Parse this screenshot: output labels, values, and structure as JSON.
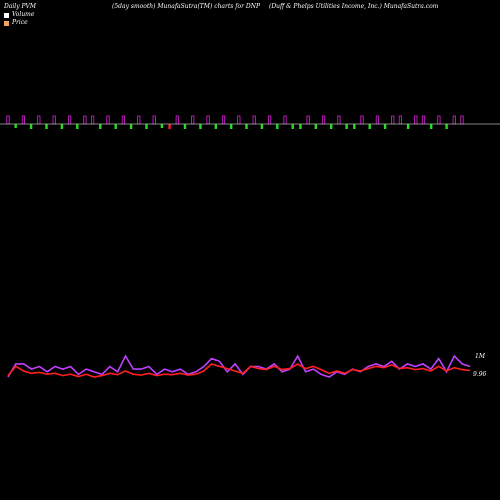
{
  "header": {
    "left": "Daily PVM",
    "center": "(5day smooth) MunafaSutra(TM) charts for DNP",
    "right": "(Duff & Phelps Utilities Income, Inc.) MunafaSutra.com"
  },
  "legend": [
    {
      "label": "Volume",
      "color": "#ffffff"
    },
    {
      "label": "Price",
      "color": "#f4a460"
    }
  ],
  "axis_labels": {
    "volume": "1M",
    "price": "9.96"
  },
  "colors": {
    "up": "#e020e0",
    "down": "#20e020",
    "strong_down": "#ff1a40",
    "baseline": "#b0b0b0",
    "volume_line": "#c040ff",
    "price_line": "#ff2020"
  },
  "chart_data": [
    {
      "type": "bar",
      "panel": "volume-bars",
      "title": "",
      "note_dir": "1 = up day (magenta, above), -1 = down day (below)",
      "values": [
        2,
        -1,
        2,
        2,
        2,
        2,
        2,
        2,
        2,
        2,
        2,
        2,
        2,
        2,
        2,
        2,
        2,
        2,
        2,
        2,
        -1,
        -2,
        2,
        2,
        2,
        2,
        2,
        2,
        2,
        2,
        2,
        2,
        2,
        2,
        2,
        2,
        2,
        2,
        2,
        2,
        2,
        2,
        2,
        2,
        2,
        2,
        2,
        2,
        2,
        2,
        2,
        2,
        2,
        2,
        2,
        2,
        2,
        2,
        2,
        2
      ],
      "dir": [
        1,
        -1,
        1,
        -1,
        1,
        -1,
        1,
        -1,
        1,
        -1,
        1,
        1,
        -1,
        1,
        -1,
        1,
        -1,
        1,
        -1,
        1,
        -1,
        -1,
        1,
        -1,
        1,
        -1,
        1,
        -1,
        1,
        -1,
        1,
        -1,
        1,
        -1,
        1,
        -1,
        1,
        -1,
        -1,
        1,
        -1,
        1,
        -1,
        1,
        -1,
        -1,
        1,
        -1,
        1,
        -1,
        1,
        1,
        -1,
        1,
        1,
        -1,
        1,
        -1,
        1,
        1
      ]
    },
    {
      "type": "line",
      "panel": "pvm-lines",
      "title": "",
      "series": [
        {
          "values": [
            0.92,
            0.97,
            0.97,
            0.95,
            0.96,
            0.94,
            0.96,
            0.95,
            0.96,
            0.93,
            0.95,
            0.94,
            0.93,
            0.96,
            0.94,
            1.0,
            0.95,
            0.95,
            0.96,
            0.93,
            0.95,
            0.94,
            0.95,
            0.93,
            0.94,
            0.96,
            0.99,
            0.98,
            0.94,
            0.97,
            0.93,
            0.96,
            0.96,
            0.95,
            0.97,
            0.94,
            0.95,
            1.0,
            0.94,
            0.95,
            0.93,
            0.92,
            0.94,
            0.93,
            0.95,
            0.94,
            0.96,
            0.97,
            0.96,
            0.98,
            0.95,
            0.97,
            0.96,
            0.97,
            0.95,
            0.99,
            0.94,
            1.0,
            0.97,
            0.96
          ]
        },
        {
          "values": [
            9.955,
            9.975,
            9.965,
            9.96,
            9.962,
            9.958,
            9.96,
            9.955,
            9.958,
            9.953,
            9.958,
            9.952,
            9.955,
            9.96,
            9.957,
            9.965,
            9.958,
            9.956,
            9.96,
            9.955,
            9.958,
            9.957,
            9.96,
            9.956,
            9.958,
            9.965,
            9.98,
            9.975,
            9.97,
            9.965,
            9.96,
            9.975,
            9.97,
            9.968,
            9.975,
            9.968,
            9.97,
            9.98,
            9.97,
            9.975,
            9.968,
            9.96,
            9.965,
            9.96,
            9.968,
            9.965,
            9.97,
            9.975,
            9.972,
            9.978,
            9.97,
            9.972,
            9.968,
            9.97,
            9.965,
            9.975,
            9.965,
            9.972,
            9.968,
            9.966
          ]
        }
      ]
    }
  ]
}
